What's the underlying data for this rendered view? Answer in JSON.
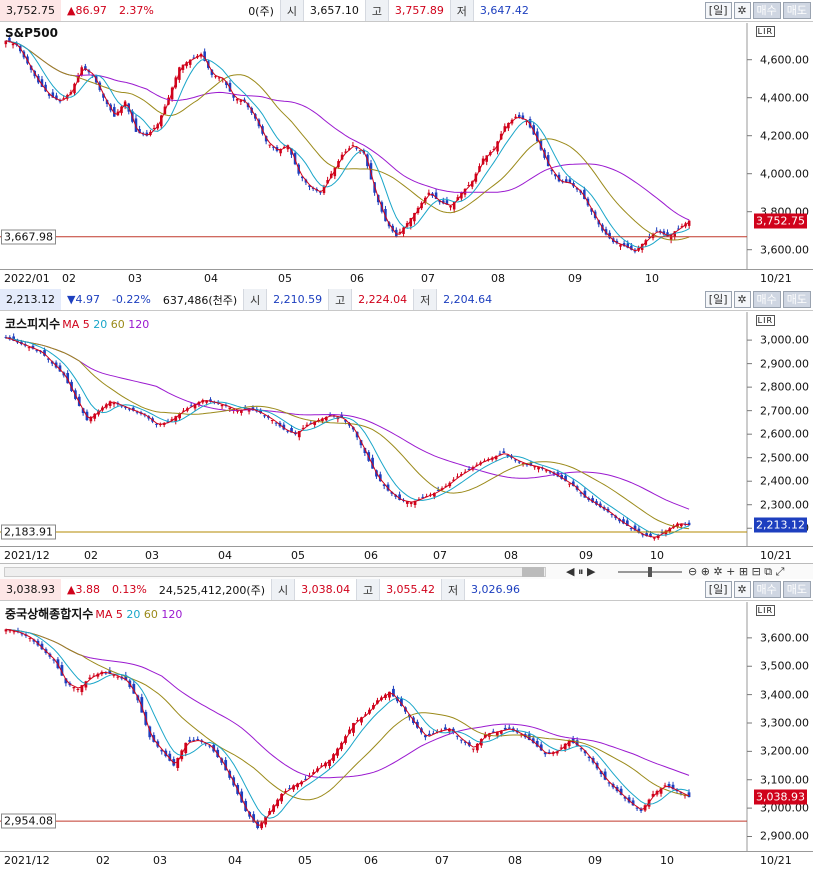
{
  "panels": [
    {
      "quote": {
        "price": "3,752.75",
        "change": "▲86.97",
        "pct": "2.37%",
        "volume": "0(주)",
        "open_label": "시",
        "open": "3,657.10",
        "high_label": "고",
        "high": "3,757.89",
        "low_label": "저",
        "low": "3,647.42"
      },
      "controls": {
        "period": "[일]",
        "gear": "✲",
        "buy": "매수",
        "sell": "매도"
      },
      "lir": "LIR"
    },
    {
      "quote": {
        "price": "2,213.12",
        "change": "▼4.97",
        "pct": "-0.22%",
        "volume": "637,486(천주)",
        "open_label": "시",
        "open": "2,210.59",
        "high_label": "고",
        "high": "2,224.04",
        "low_label": "저",
        "low": "2,204.64"
      },
      "controls": {
        "period": "[일]",
        "gear": "✲",
        "buy": "매수",
        "sell": "매도"
      },
      "lir": "LIR"
    },
    {
      "quote": {
        "price": "3,038.93",
        "change": "▲3.88",
        "pct": "0.13%",
        "volume": "24,525,412,200(주)",
        "open_label": "시",
        "open": "3,038.04",
        "high_label": "고",
        "high": "3,055.42",
        "low_label": "저",
        "low": "3,026.96"
      },
      "controls": {
        "period": "[일]",
        "gear": "✲",
        "buy": "매수",
        "sell": "매도"
      },
      "lir": "LIR"
    }
  ],
  "scrollbar": {
    "controls": "◀  ⏸  ▶",
    "zoom": "⊖ ⊕ ✲ + ⊞ ⊟ ⧉ ⤢"
  },
  "chart_data": [
    {
      "type": "candlestick",
      "title": "S&P500",
      "ma_legend": "",
      "y_ticks": [
        "4,600.00",
        "4,400.00",
        "4,200.00",
        "4,000.00",
        "3,800.00",
        "3,600.00"
      ],
      "ylim": [
        3530,
        4730
      ],
      "x_ticks": [
        "2022/01",
        "02",
        "03",
        "04",
        "05",
        "06",
        "07",
        "08",
        "09",
        "10"
      ],
      "x_end": "10/21",
      "current": "3,752.75",
      "level_line": "3,667.98",
      "level_value": 3667.98,
      "last": 3752.75,
      "colors": {
        "up": "#d0021b",
        "down": "#1d3fbf",
        "ma5": "#d0021b",
        "ma20": "#1aa6c9",
        "ma60": "#9b8a1a",
        "ma120": "#9b1ad0",
        "level": "#c0392b"
      },
      "series": [
        {
          "name": "close",
          "values": [
            4700,
            4677,
            4580,
            4480,
            4410,
            4380,
            4430,
            4560,
            4520,
            4400,
            4300,
            4380,
            4220,
            4200,
            4260,
            4400,
            4560,
            4600,
            4630,
            4520,
            4500,
            4400,
            4380,
            4290,
            4170,
            4120,
            4150,
            4000,
            3930,
            3900,
            4000,
            4100,
            4150,
            4110,
            3900,
            3750,
            3670,
            3740,
            3820,
            3900,
            3850,
            3830,
            3900,
            3960,
            4080,
            4130,
            4250,
            4300,
            4280,
            4170,
            4040,
            3960,
            3950,
            3900,
            3800,
            3700,
            3640,
            3620,
            3590,
            3650,
            3700,
            3670,
            3710,
            3752.75
          ]
        }
      ]
    },
    {
      "type": "candlestick",
      "title": "코스피지수",
      "ma_legend": "MA",
      "ma_periods": [
        "5",
        "20",
        "60",
        "120"
      ],
      "y_ticks": [
        "3,000.00",
        "2,900.00",
        "2,800.00",
        "2,700.00",
        "2,600.00",
        "2,500.00",
        "2,400.00",
        "2,300.00",
        "2,200.00"
      ],
      "ylim": [
        2150,
        3060
      ],
      "x_ticks": [
        "2021/12",
        "02",
        "03",
        "04",
        "05",
        "06",
        "07",
        "08",
        "09",
        "10"
      ],
      "x_end": "10/21",
      "current": "2,213.12",
      "level_line": "2,183.91",
      "level_value": 2183.91,
      "last": 2213.12,
      "colors": {
        "up": "#d0021b",
        "down": "#1d3fbf",
        "ma5": "#d0021b",
        "ma20": "#1aa6c9",
        "ma60": "#9b8a1a",
        "ma120": "#9b1ad0",
        "level": "#b38a00"
      },
      "series": [
        {
          "name": "close",
          "values": [
            3010,
            2990,
            2970,
            2950,
            2900,
            2850,
            2750,
            2660,
            2700,
            2740,
            2720,
            2700,
            2680,
            2640,
            2650,
            2690,
            2720,
            2745,
            2735,
            2720,
            2700,
            2710,
            2690,
            2660,
            2620,
            2600,
            2640,
            2660,
            2680,
            2670,
            2620,
            2520,
            2420,
            2360,
            2320,
            2310,
            2330,
            2350,
            2380,
            2420,
            2450,
            2480,
            2500,
            2520,
            2490,
            2470,
            2460,
            2440,
            2410,
            2380,
            2330,
            2300,
            2270,
            2230,
            2200,
            2170,
            2160,
            2190,
            2220,
            2213.12
          ]
        }
      ]
    },
    {
      "type": "candlestick",
      "title": "중국상해종합지수",
      "ma_legend": "MA",
      "ma_periods": [
        "5",
        "20",
        "60",
        "120"
      ],
      "y_ticks": [
        "3,600.00",
        "3,500.00",
        "3,400.00",
        "3,300.00",
        "3,200.00",
        "3,100.00",
        "3,000.00",
        "2,900.00"
      ],
      "ylim": [
        2870,
        3670
      ],
      "x_ticks": [
        "2021/12",
        "02",
        "03",
        "04",
        "05",
        "06",
        "07",
        "08",
        "09",
        "10"
      ],
      "x_end": "10/21",
      "current": "3,038.93",
      "level_line": "2,954.08",
      "level_value": 2954.08,
      "last": 3038.93,
      "colors": {
        "up": "#d0021b",
        "down": "#1d3fbf",
        "ma5": "#d0021b",
        "ma20": "#1aa6c9",
        "ma60": "#9b8a1a",
        "ma120": "#9b1ad0",
        "level": "#c0392b"
      },
      "series": [
        {
          "name": "close",
          "values": [
            3630,
            3620,
            3600,
            3560,
            3520,
            3440,
            3420,
            3460,
            3480,
            3470,
            3450,
            3380,
            3250,
            3200,
            3150,
            3230,
            3240,
            3220,
            3160,
            3080,
            2990,
            2930,
            2990,
            3050,
            3080,
            3100,
            3140,
            3170,
            3230,
            3300,
            3330,
            3380,
            3410,
            3360,
            3300,
            3250,
            3270,
            3280,
            3240,
            3210,
            3260,
            3270,
            3280,
            3260,
            3230,
            3190,
            3200,
            3240,
            3210,
            3160,
            3100,
            3060,
            3020,
            2990,
            3050,
            3080,
            3060,
            3038.93
          ]
        }
      ]
    }
  ]
}
